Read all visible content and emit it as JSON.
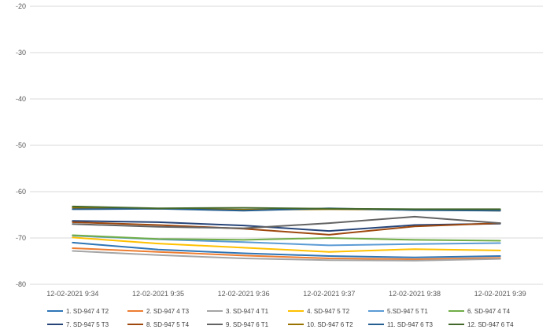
{
  "chart_data": {
    "type": "line",
    "title": "",
    "xlabel": "",
    "ylabel": "",
    "ylim": [
      -80,
      -20
    ],
    "yticks": [
      -20,
      -30,
      -40,
      -50,
      -60,
      -70,
      -80
    ],
    "grid": "horizontal",
    "legend": "bottom",
    "categories": [
      "12-02-2021 9:34",
      "12-02-2021 9:35",
      "12-02-2021 9:36",
      "12-02-2021 9:37",
      "12-02-2021 9:38",
      "12-02-2021 9:39"
    ],
    "series": [
      {
        "name": "1. SD-947 4 T2",
        "color": "#2E75B6",
        "values": [
          -71.0,
          -72.5,
          -73.3,
          -73.9,
          -74.2,
          -73.9
        ]
      },
      {
        "name": "2. SD-947 4 T3",
        "color": "#ED7D31",
        "values": [
          -72.2,
          -73.0,
          -73.8,
          -74.4,
          -74.6,
          -74.3
        ]
      },
      {
        "name": "3. SD-947 4 T1",
        "color": "#A5A5A5",
        "values": [
          -72.8,
          -73.7,
          -74.4,
          -74.8,
          -74.9,
          -74.5
        ]
      },
      {
        "name": "4. SD-947 5 T2",
        "color": "#FFC000",
        "values": [
          -69.9,
          -71.2,
          -72.1,
          -73.0,
          -72.4,
          -72.7
        ]
      },
      {
        "name": "5.SD-947 5 T1",
        "color": "#5B9BD5",
        "values": [
          -69.5,
          -70.3,
          -70.9,
          -71.6,
          -71.3,
          -71.1
        ]
      },
      {
        "name": "6. SD-947 4 T4",
        "color": "#70AD47",
        "values": [
          -69.4,
          -70.2,
          -70.4,
          -70.0,
          -70.4,
          -70.6
        ]
      },
      {
        "name": "7. SD-947 5 T3",
        "color": "#264478",
        "values": [
          -66.3,
          -66.6,
          -67.3,
          -68.5,
          -67.2,
          -66.9
        ]
      },
      {
        "name": "8. SD-947 5 T4",
        "color": "#9E480E",
        "values": [
          -66.6,
          -67.2,
          -68.0,
          -69.3,
          -67.5,
          -66.8
        ]
      },
      {
        "name": "9. SD-947 6 T1",
        "color": "#636363",
        "values": [
          -67.0,
          -67.6,
          -67.9,
          -66.8,
          -65.4,
          -66.8
        ]
      },
      {
        "name": "10. SD-947 6 T2",
        "color": "#997300",
        "values": [
          -63.5,
          -63.7,
          -63.9,
          -63.8,
          -63.9,
          -64.1
        ]
      },
      {
        "name": "11. SD-947 6 T3",
        "color": "#255E91",
        "values": [
          -63.8,
          -63.7,
          -64.1,
          -63.6,
          -64.0,
          -64.1
        ]
      },
      {
        "name": "12. SD-947 6 T4",
        "color": "#43682B",
        "values": [
          -63.2,
          -63.6,
          -63.5,
          -63.7,
          -63.8,
          -63.8
        ]
      }
    ]
  }
}
